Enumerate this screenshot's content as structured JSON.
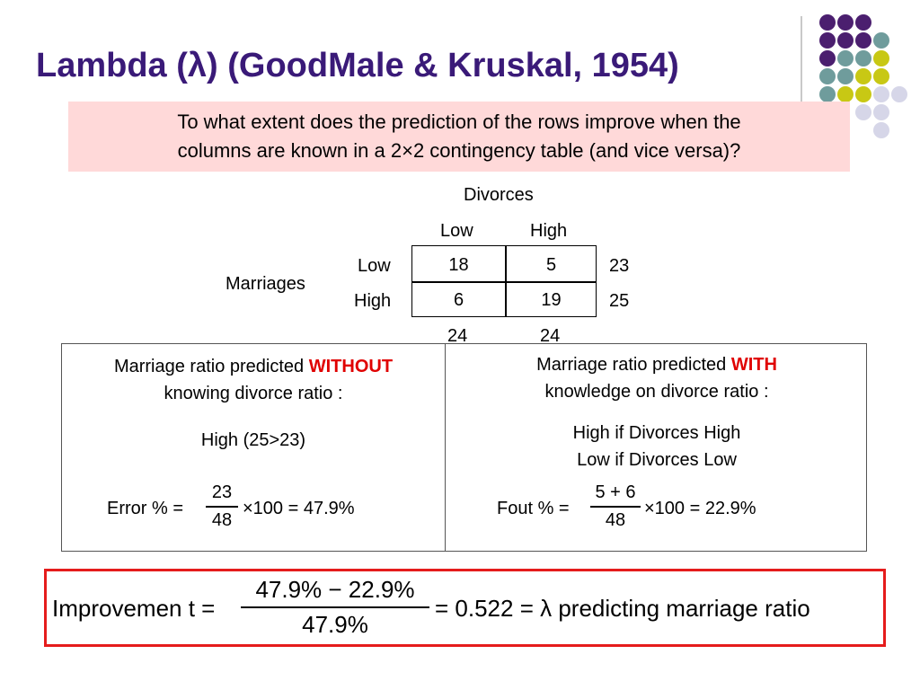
{
  "title": "Lambda (λ) (GoodMale & Kruskal, 1954)",
  "question": {
    "line1": "To what extent does the prediction of the rows improve when the",
    "line2": "columns are known in a 2×2 contingency table (and vice versa)?"
  },
  "table": {
    "col_var": "Divorces",
    "row_var": "Marriages",
    "col_labels": [
      "Low",
      "High"
    ],
    "row_labels": [
      "Low",
      "High"
    ],
    "cells": [
      [
        "18",
        "5"
      ],
      [
        "6",
        "19"
      ]
    ],
    "row_totals": [
      "23",
      "25"
    ],
    "col_totals": [
      "24",
      "24"
    ]
  },
  "left_panel": {
    "heading_pre": "Marriage ratio predicted ",
    "heading_emph": "WITHOUT",
    "heading_line2": "knowing divorce ratio :",
    "prediction": "High (25>23)",
    "formula_label": "Error % =",
    "numerator": "23",
    "denominator": "48",
    "formula_tail": "×100 = 47.9%"
  },
  "right_panel": {
    "heading_pre": "Marriage ratio predicted ",
    "heading_emph": "WITH",
    "heading_line2": "knowledge on divorce ratio :",
    "prediction_line1": "High if Divorces High",
    "prediction_line2": "Low if Divorces Low",
    "formula_label": "Fout % =",
    "numerator": "5 + 6",
    "denominator": "48",
    "formula_tail": "×100 = 22.9%"
  },
  "improvement": {
    "label": "Improvemen t =",
    "numerator": "47.9% − 22.9%",
    "denominator": "47.9%",
    "tail": "= 0.522 = λ  predicting marriage ratio"
  },
  "colors": {
    "title": "#3a1a78",
    "dot_purple": "#4b1f6f",
    "dot_teal": "#6f9c9c",
    "dot_yellow": "#c8c814",
    "dot_lavender": "#d6d6e8",
    "question_bg": "#ffd9d9",
    "emphasis": "#e00000",
    "improvement_border": "#e51c1c"
  }
}
